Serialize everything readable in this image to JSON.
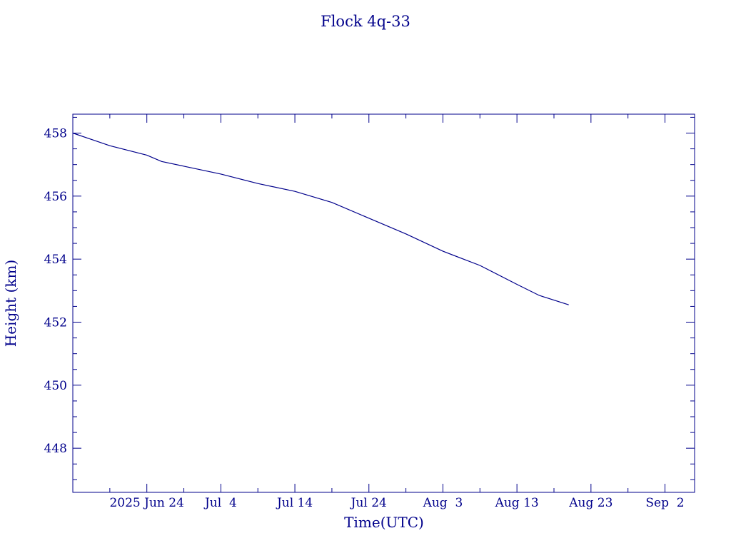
{
  "chart_data": {
    "type": "line",
    "title": "Flock 4q-33",
    "xlabel": "Time(UTC)",
    "ylabel": "Height (km)",
    "color": "#00008b",
    "xlim": [
      "2025-06-14",
      "2025-09-06"
    ],
    "ylim": [
      446.6,
      458.6
    ],
    "yticks": [
      448,
      450,
      452,
      454,
      456,
      458
    ],
    "xticks": [
      {
        "date": "2025-06-24",
        "label": "2025 Jun 24"
      },
      {
        "date": "2025-07-04",
        "label": "Jul  4"
      },
      {
        "date": "2025-07-14",
        "label": "Jul 14"
      },
      {
        "date": "2025-07-24",
        "label": "Jul 24"
      },
      {
        "date": "2025-08-03",
        "label": "Aug  3"
      },
      {
        "date": "2025-08-13",
        "label": "Aug 13"
      },
      {
        "date": "2025-08-23",
        "label": "Aug 23"
      },
      {
        "date": "2025-09-02",
        "label": "Sep  2"
      }
    ],
    "grid": false,
    "series": [
      {
        "x": [
          "2025-06-14",
          "2025-06-19",
          "2025-06-24",
          "2025-06-26",
          "2025-06-29",
          "2025-07-04",
          "2025-07-09",
          "2025-07-14",
          "2025-07-19",
          "2025-07-24",
          "2025-07-29",
          "2025-08-03",
          "2025-08-08",
          "2025-08-13",
          "2025-08-16",
          "2025-08-20"
        ],
        "y": [
          458.0,
          457.6,
          457.3,
          457.1,
          456.95,
          456.7,
          456.4,
          456.15,
          455.8,
          455.3,
          454.8,
          454.25,
          453.8,
          453.2,
          452.85,
          452.55
        ]
      }
    ]
  }
}
